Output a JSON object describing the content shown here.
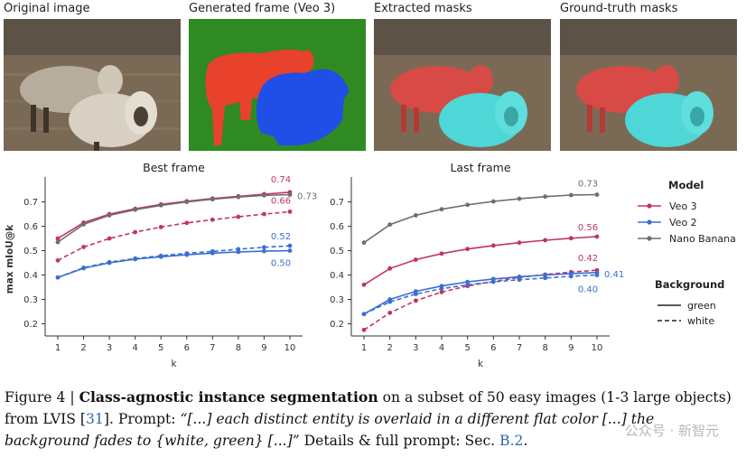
{
  "panels": [
    {
      "title": "Original image"
    },
    {
      "title": "Generated frame (Veo 3)"
    },
    {
      "title": "Extracted masks"
    },
    {
      "title": "Ground-truth masks"
    }
  ],
  "colors": {
    "veo3": "#c2336a",
    "veo2": "#3a6fd1",
    "nano": "#6e6e6e",
    "mask_red": "#e8412c",
    "mask_blue": "#1f4fe6",
    "gen_bg": "#2f8a24",
    "overlay_red": "#d84a45",
    "overlay_cyan": "#4fd6d6"
  },
  "legend": {
    "model_title": "Model",
    "models": [
      "Veo 3",
      "Veo 2",
      "Nano Banana"
    ],
    "bg_title": "Background",
    "bgs": [
      "green",
      "white"
    ]
  },
  "chart_data": [
    {
      "type": "line",
      "title": "Best frame",
      "xlabel": "k",
      "ylabel": "max mIoU@k",
      "x": [
        1,
        2,
        3,
        4,
        5,
        6,
        7,
        8,
        9,
        10
      ],
      "ylim": [
        0.15,
        0.78
      ],
      "yticks": [
        "0.2",
        "0.3",
        "0.4",
        "0.5",
        "0.6",
        "0.7"
      ],
      "series": [
        {
          "name": "Veo 3",
          "background": "green",
          "values": [
            0.55,
            0.615,
            0.65,
            0.672,
            0.69,
            0.703,
            0.714,
            0.723,
            0.732,
            0.74
          ]
        },
        {
          "name": "Veo 3",
          "background": "white",
          "values": [
            0.46,
            0.515,
            0.55,
            0.576,
            0.597,
            0.614,
            0.627,
            0.639,
            0.65,
            0.66
          ]
        },
        {
          "name": "Veo 2",
          "background": "green",
          "values": [
            0.39,
            0.428,
            0.45,
            0.465,
            0.475,
            0.483,
            0.49,
            0.495,
            0.498,
            0.5
          ]
        },
        {
          "name": "Veo 2",
          "background": "white",
          "values": [
            0.39,
            0.43,
            0.453,
            0.468,
            0.479,
            0.489,
            0.497,
            0.506,
            0.514,
            0.52
          ]
        },
        {
          "name": "Nano Banana",
          "background": "green",
          "values": [
            0.535,
            0.608,
            0.645,
            0.668,
            0.686,
            0.7,
            0.711,
            0.72,
            0.727,
            0.73
          ]
        }
      ],
      "end_labels": [
        {
          "text": "0.74",
          "series": "Veo 3"
        },
        {
          "text": "0.73",
          "series": "Nano Banana"
        },
        {
          "text": "0.66",
          "series": "Veo 3"
        },
        {
          "text": "0.52",
          "series": "Veo 2"
        },
        {
          "text": "0.50",
          "series": "Veo 2"
        }
      ]
    },
    {
      "type": "line",
      "title": "Last frame",
      "xlabel": "k",
      "ylabel": "",
      "x": [
        1,
        2,
        3,
        4,
        5,
        6,
        7,
        8,
        9,
        10
      ],
      "ylim": [
        0.15,
        0.78
      ],
      "yticks": [
        "0.2",
        "0.3",
        "0.4",
        "0.5",
        "0.6",
        "0.7"
      ],
      "series": [
        {
          "name": "Veo 3",
          "background": "green",
          "values": [
            0.36,
            0.427,
            0.463,
            0.488,
            0.507,
            0.521,
            0.533,
            0.543,
            0.551,
            0.558
          ]
        },
        {
          "name": "Veo 3",
          "background": "white",
          "values": [
            0.175,
            0.245,
            0.295,
            0.33,
            0.355,
            0.374,
            0.39,
            0.402,
            0.412,
            0.42
          ]
        },
        {
          "name": "Veo 2",
          "background": "green",
          "values": [
            0.24,
            0.3,
            0.333,
            0.355,
            0.372,
            0.384,
            0.393,
            0.4,
            0.406,
            0.41
          ]
        },
        {
          "name": "Veo 2",
          "background": "white",
          "values": [
            0.24,
            0.29,
            0.322,
            0.344,
            0.36,
            0.372,
            0.381,
            0.388,
            0.395,
            0.4
          ]
        },
        {
          "name": "Nano Banana",
          "background": "green",
          "values": [
            0.533,
            0.607,
            0.645,
            0.67,
            0.688,
            0.702,
            0.713,
            0.722,
            0.728,
            0.73
          ]
        }
      ],
      "end_labels": [
        {
          "text": "0.73",
          "series": "Nano Banana"
        },
        {
          "text": "0.56",
          "series": "Veo 3"
        },
        {
          "text": "0.42",
          "series": "Veo 3"
        },
        {
          "text": "0.41",
          "series": "Veo 2"
        },
        {
          "text": "0.40",
          "series": "Veo 2"
        }
      ]
    }
  ],
  "caption": {
    "prefix": "Figure 4 | ",
    "bold": "Class-agnostic instance segmentation",
    "t1": " on a subset of 50 easy images (1-3 large objects) from LVIS [",
    "ref": "31",
    "t2": "]. Prompt: ",
    "prompt": "“[...] each distinct entity is overlaid in a different flat color [...] the background fades to {white, green} [...]”",
    "t3": " Details & full prompt: Sec. ",
    "sec": "B.2",
    "t4": "."
  },
  "watermark": "公众号 · 新智元"
}
